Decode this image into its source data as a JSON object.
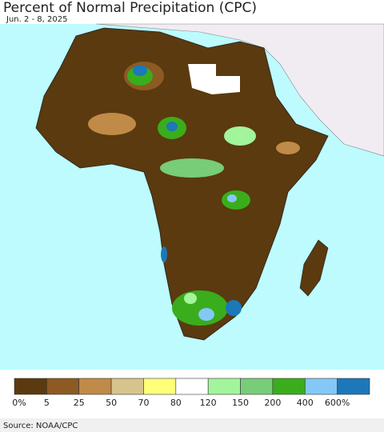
{
  "header": {
    "title": "Percent of Normal Precipitation (CPC)",
    "subtitle": "Jun. 2 - 8, 2025"
  },
  "legend": {
    "colors": [
      "#5a3a0e",
      "#8c5a22",
      "#c08a48",
      "#d6c48c",
      "#ffff78",
      "#ffffff",
      "#a2f59a",
      "#78cd78",
      "#3aad1c",
      "#84c8f8",
      "#1c78b8"
    ],
    "labels": [
      "0%",
      "5",
      "25",
      "50",
      "70",
      "80",
      "120",
      "150",
      "200",
      "400",
      "600%"
    ]
  },
  "footer": {
    "source": "Source: NOAA/CPC"
  }
}
